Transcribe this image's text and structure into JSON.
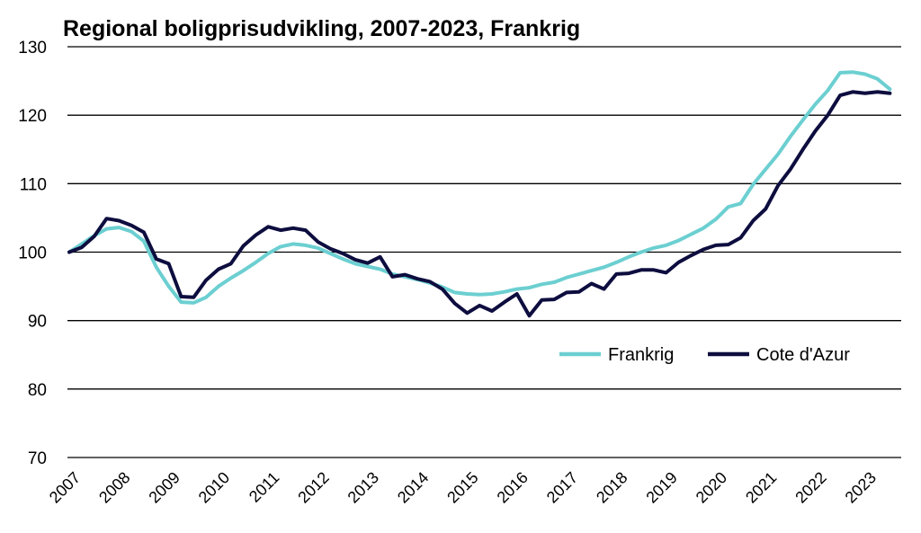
{
  "chart_data": {
    "type": "line",
    "title": "Regional boligprisudvikling, 2007-2023, Frankrig",
    "xlabel": "",
    "ylabel": "",
    "ylim": [
      70,
      130
    ],
    "yticks": [
      "70",
      "80",
      "90",
      "100",
      "110",
      "120",
      "130"
    ],
    "x_ticks": [
      "2007",
      "2008",
      "2009",
      "2010",
      "2011",
      "2012",
      "2013",
      "2014",
      "2015",
      "2016",
      "2017",
      "2018",
      "2019",
      "2020",
      "2021",
      "2022",
      "2023"
    ],
    "grid": true,
    "legend_position": "lower-right",
    "x": [
      "2007Q1",
      "2007Q2",
      "2007Q3",
      "2007Q4",
      "2008Q1",
      "2008Q2",
      "2008Q3",
      "2008Q4",
      "2009Q1",
      "2009Q2",
      "2009Q3",
      "2009Q4",
      "2010Q1",
      "2010Q2",
      "2010Q3",
      "2010Q4",
      "2011Q1",
      "2011Q2",
      "2011Q3",
      "2011Q4",
      "2012Q1",
      "2012Q2",
      "2012Q3",
      "2012Q4",
      "2013Q1",
      "2013Q2",
      "2013Q3",
      "2013Q4",
      "2014Q1",
      "2014Q2",
      "2014Q3",
      "2014Q4",
      "2015Q1",
      "2015Q2",
      "2015Q3",
      "2015Q4",
      "2016Q1",
      "2016Q2",
      "2016Q3",
      "2016Q4",
      "2017Q1",
      "2017Q2",
      "2017Q3",
      "2017Q4",
      "2018Q1",
      "2018Q2",
      "2018Q3",
      "2018Q4",
      "2019Q1",
      "2019Q2",
      "2019Q3",
      "2019Q4",
      "2020Q1",
      "2020Q2",
      "2020Q3",
      "2020Q4",
      "2021Q1",
      "2021Q2",
      "2021Q3",
      "2021Q4",
      "2022Q1",
      "2022Q2",
      "2022Q3",
      "2022Q4",
      "2023Q1",
      "2023Q2",
      "2023Q3"
    ],
    "series": [
      {
        "name": "Frankrig",
        "color": "#6ccfd1",
        "values": [
          100,
          101.2,
          102.4,
          103.4,
          103.6,
          103.0,
          101.6,
          97.8,
          95.0,
          92.7,
          92.6,
          93.4,
          95.0,
          96.2,
          97.3,
          98.5,
          99.8,
          100.8,
          101.2,
          101.0,
          100.6,
          99.8,
          99.0,
          98.3,
          97.9,
          97.5,
          96.8,
          96.4,
          96.0,
          95.5,
          94.9,
          94.1,
          93.9,
          93.8,
          93.9,
          94.2,
          94.6,
          94.8,
          95.3,
          95.6,
          96.3,
          96.8,
          97.3,
          97.8,
          98.5,
          99.3,
          100.0,
          100.6,
          101.0,
          101.7,
          102.6,
          103.5,
          104.8,
          106.6,
          107.1,
          109.9,
          112.1,
          114.3,
          116.9,
          119.3,
          121.6,
          123.6,
          126.2,
          126.3,
          126.0,
          125.3,
          123.8
        ]
      },
      {
        "name": "Cote d'Azur",
        "color": "#0d0d3f",
        "values": [
          100,
          100.7,
          102.3,
          104.9,
          104.6,
          103.9,
          102.9,
          99.0,
          98.3,
          93.5,
          93.4,
          95.9,
          97.5,
          98.3,
          100.9,
          102.5,
          103.7,
          103.2,
          103.5,
          103.2,
          101.5,
          100.5,
          99.8,
          98.9,
          98.4,
          99.3,
          96.4,
          96.7,
          96.1,
          95.7,
          94.6,
          92.5,
          91.1,
          92.2,
          91.4,
          92.7,
          93.9,
          90.7,
          93.0,
          93.1,
          94.1,
          94.2,
          95.4,
          94.6,
          96.8,
          96.9,
          97.4,
          97.4,
          97.0,
          98.5,
          99.5,
          100.4,
          101.0,
          101.1,
          102.1,
          104.6,
          106.3,
          109.7,
          112.1,
          115.0,
          117.7,
          120.0,
          122.9,
          123.4,
          123.2,
          123.4,
          123.2
        ]
      }
    ]
  }
}
